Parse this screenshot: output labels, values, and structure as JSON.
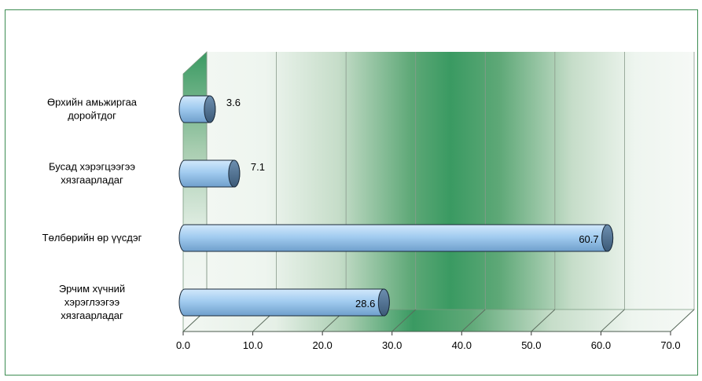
{
  "chart_data": {
    "type": "bar",
    "orientation": "horizontal",
    "three_d": true,
    "categories": [
      [
        "Өрхийн амьжиргаа",
        "доройтдог"
      ],
      [
        "Бусад хэрэгцээгээ",
        "хязгаарладаг"
      ],
      [
        "Төлбөрийн өр үүсдэг"
      ],
      [
        "Эрчим хүчний",
        "хэрэглээгээ",
        "хязгаарладаг"
      ]
    ],
    "values": [
      3.6,
      7.1,
      60.7,
      28.6
    ],
    "value_labels": [
      "3.6",
      "7.1",
      "60.7",
      "28.6"
    ],
    "x_ticks": [
      "0.0",
      "10.0",
      "20.0",
      "30.0",
      "40.0",
      "50.0",
      "60.0",
      "70.0"
    ],
    "xlim": [
      0,
      70
    ],
    "grid": true,
    "legend": "none",
    "colors": {
      "bar_fill": "#9ecbf0",
      "bar_cap": "#4a6a8a",
      "band_green": "#3a9a62",
      "frame": "#3d8c52"
    }
  }
}
